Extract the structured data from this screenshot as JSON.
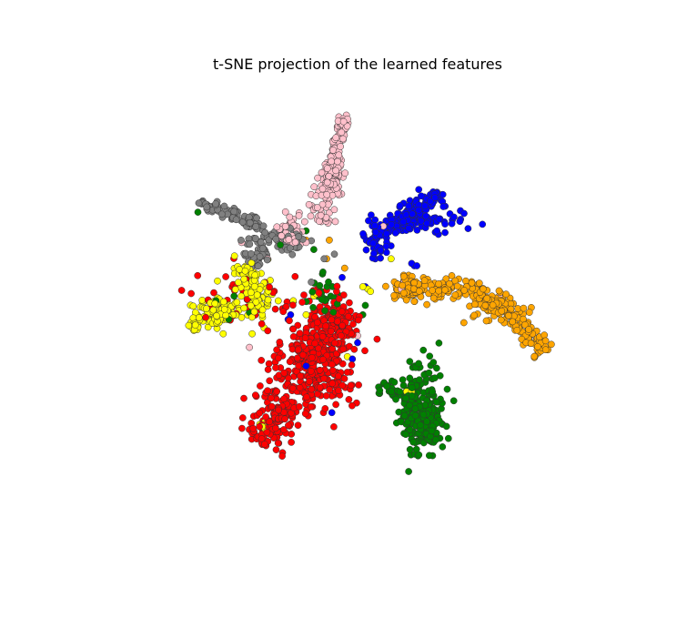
{
  "chart_data": {
    "type": "scatter",
    "title": "t-SNE projection of the learned features",
    "xlabel": "",
    "ylabel": "",
    "xlim": [
      -100,
      100
    ],
    "ylim": [
      -100,
      100
    ],
    "axes_visible": false,
    "grid": false,
    "legend": "none",
    "marker": {
      "shape": "circle",
      "edgecolor": "#333333"
    },
    "series": [
      {
        "color": "#ff0000",
        "clusters": [
          {
            "center": [
              -15,
              -15
            ],
            "spread": [
              7,
              11
            ],
            "n": 300
          },
          {
            "center": [
              -32,
              -38
            ],
            "spread": [
              5,
              8
            ],
            "n": 90
          },
          {
            "center": [
              -8,
              3
            ],
            "spread": [
              5,
              6
            ],
            "n": 90
          },
          {
            "center": [
              -40,
              10
            ],
            "spread": [
              12,
              6
            ],
            "n": 50
          }
        ],
        "segments": [
          {
            "from": [
              -38,
              -52
            ],
            "to": [
              -12,
              -5
            ],
            "width": 5,
            "n": 120
          }
        ]
      },
      {
        "color": "#008000",
        "clusters": [
          {
            "center": [
              26,
              -36
            ],
            "spread": [
              4,
              11
            ],
            "n": 150
          },
          {
            "center": [
              14,
              -28
            ],
            "spread": [
              4,
              2
            ],
            "n": 30
          },
          {
            "center": [
              -13,
              12
            ],
            "spread": [
              3,
              4
            ],
            "n": 25
          }
        ],
        "segments": [
          {
            "from": [
              20,
              -30
            ],
            "to": [
              27,
              -52
            ],
            "width": 3,
            "n": 90
          }
        ],
        "points": [
          [
            -62,
            48
          ],
          [
            -48,
            12
          ],
          [
            -42,
            5
          ],
          [
            -30,
            34
          ],
          [
            -17,
            32
          ],
          [
            -20,
            40
          ],
          [
            -50,
            2
          ],
          [
            -55,
            10
          ],
          [
            2,
            4
          ],
          [
            3,
            8
          ]
        ]
      },
      {
        "color": "#0000ff",
        "clusters": [
          {
            "center": [
              24,
              44
            ],
            "spread": [
              10,
              2.5
            ],
            "n": 60
          },
          {
            "center": [
              8,
              32
            ],
            "spread": [
              3,
              2
            ],
            "n": 20
          }
        ],
        "segments": [
          {
            "from": [
              4,
              35
            ],
            "to": [
              32,
              57
            ],
            "width": 2.2,
            "n": 160
          }
        ],
        "points": [
          [
            21,
            26
          ],
          [
            22,
            25
          ],
          [
            23,
            25
          ],
          [
            -26,
            4
          ],
          [
            -27,
            2
          ],
          [
            -10,
            2
          ],
          [
            -9,
            -8
          ],
          [
            -20,
            -18
          ],
          [
            0,
            -8
          ],
          [
            -2,
            -15
          ],
          [
            -10,
            -38
          ],
          [
            3,
            16
          ],
          [
            -6,
            20
          ]
        ]
      },
      {
        "color": "#ffa500",
        "clusters": [
          {
            "center": [
              20,
              15
            ],
            "spread": [
              4,
              3
            ],
            "n": 50
          },
          {
            "center": [
              52,
              8
            ],
            "spread": [
              5,
              3
            ],
            "n": 40
          }
        ],
        "segments": [
          {
            "from": [
              14,
              15
            ],
            "to": [
              45,
              15
            ],
            "width": 2.2,
            "n": 100
          },
          {
            "from": [
              45,
              15
            ],
            "to": [
              60,
              3
            ],
            "width": 2.5,
            "n": 70
          },
          {
            "from": [
              60,
              3
            ],
            "to": [
              73,
              -12
            ],
            "width": 2.5,
            "n": 80
          }
        ],
        "points": [
          [
            -11,
            36
          ],
          [
            -12,
            28
          ],
          [
            -5,
            24
          ],
          [
            -20,
            36
          ]
        ]
      },
      {
        "color": "#ffff00",
        "clusters": [
          {
            "center": [
              -55,
              5
            ],
            "spread": [
              5,
              3
            ],
            "n": 90
          },
          {
            "center": [
              -42,
              22
            ],
            "spread": [
              3,
              4
            ],
            "n": 50
          },
          {
            "center": [
              -40,
              8
            ],
            "spread": [
              3,
              5
            ],
            "n": 40
          }
        ],
        "segments": [
          {
            "from": [
              -66,
              -1
            ],
            "to": [
              -50,
              6
            ],
            "width": 1.3,
            "n": 40
          },
          {
            "from": [
              -45,
              25
            ],
            "to": [
              -36,
              8
            ],
            "width": 2,
            "n": 30
          }
        ],
        "points": [
          [
            -38,
            -43
          ],
          [
            -37,
            -44
          ],
          [
            -36,
            -46
          ],
          [
            -36,
            -42
          ],
          [
            21,
            -29
          ],
          [
            19,
            -29
          ],
          [
            23,
            -28
          ],
          [
            -17,
            12
          ],
          [
            -16,
            13
          ],
          [
            -20,
            4
          ],
          [
            -25,
            10
          ],
          [
            -4,
            -14
          ],
          [
            5,
            14
          ],
          [
            4,
            15
          ],
          [
            2,
            16
          ],
          [
            13,
            28
          ]
        ]
      },
      {
        "color": "#808080",
        "clusters": [
          {
            "center": [
              -35,
              37
            ],
            "spread": [
              4,
              3
            ],
            "n": 40
          },
          {
            "center": [
              -40,
              28
            ],
            "spread": [
              3,
              3
            ],
            "n": 35
          },
          {
            "center": [
              -25,
              35
            ],
            "spread": [
              3,
              4
            ],
            "n": 30
          }
        ],
        "segments": [
          {
            "from": [
              -62,
              52
            ],
            "to": [
              -38,
              43
            ],
            "width": 1.5,
            "n": 80
          }
        ],
        "points": [
          [
            -13,
            28
          ],
          [
            -18,
            18
          ],
          [
            -9,
            30
          ]
        ]
      },
      {
        "color": "#ffc0cb",
        "clusters": [
          {
            "center": [
              -10,
              60
            ],
            "spread": [
              2.5,
              5
            ],
            "n": 60
          },
          {
            "center": [
              -27,
              40
            ],
            "spread": [
              3,
              4
            ],
            "n": 40
          }
        ],
        "segments": [
          {
            "from": [
              -5,
              90
            ],
            "to": [
              -10,
              65
            ],
            "width": 1.5,
            "n": 70
          },
          {
            "from": [
              -11,
              65
            ],
            "to": [
              -14,
              42
            ],
            "width": 2.5,
            "n": 50
          }
        ],
        "points": [
          [
            17,
            15
          ],
          [
            8,
            40
          ],
          [
            10,
            42
          ],
          [
            -25,
            45
          ],
          [
            -20,
            35
          ],
          [
            -45,
            35
          ],
          [
            -35,
            28
          ],
          [
            -42,
            -10
          ],
          [
            55,
            12
          ],
          [
            18,
            18
          ],
          [
            0,
            -5
          ]
        ]
      }
    ]
  }
}
